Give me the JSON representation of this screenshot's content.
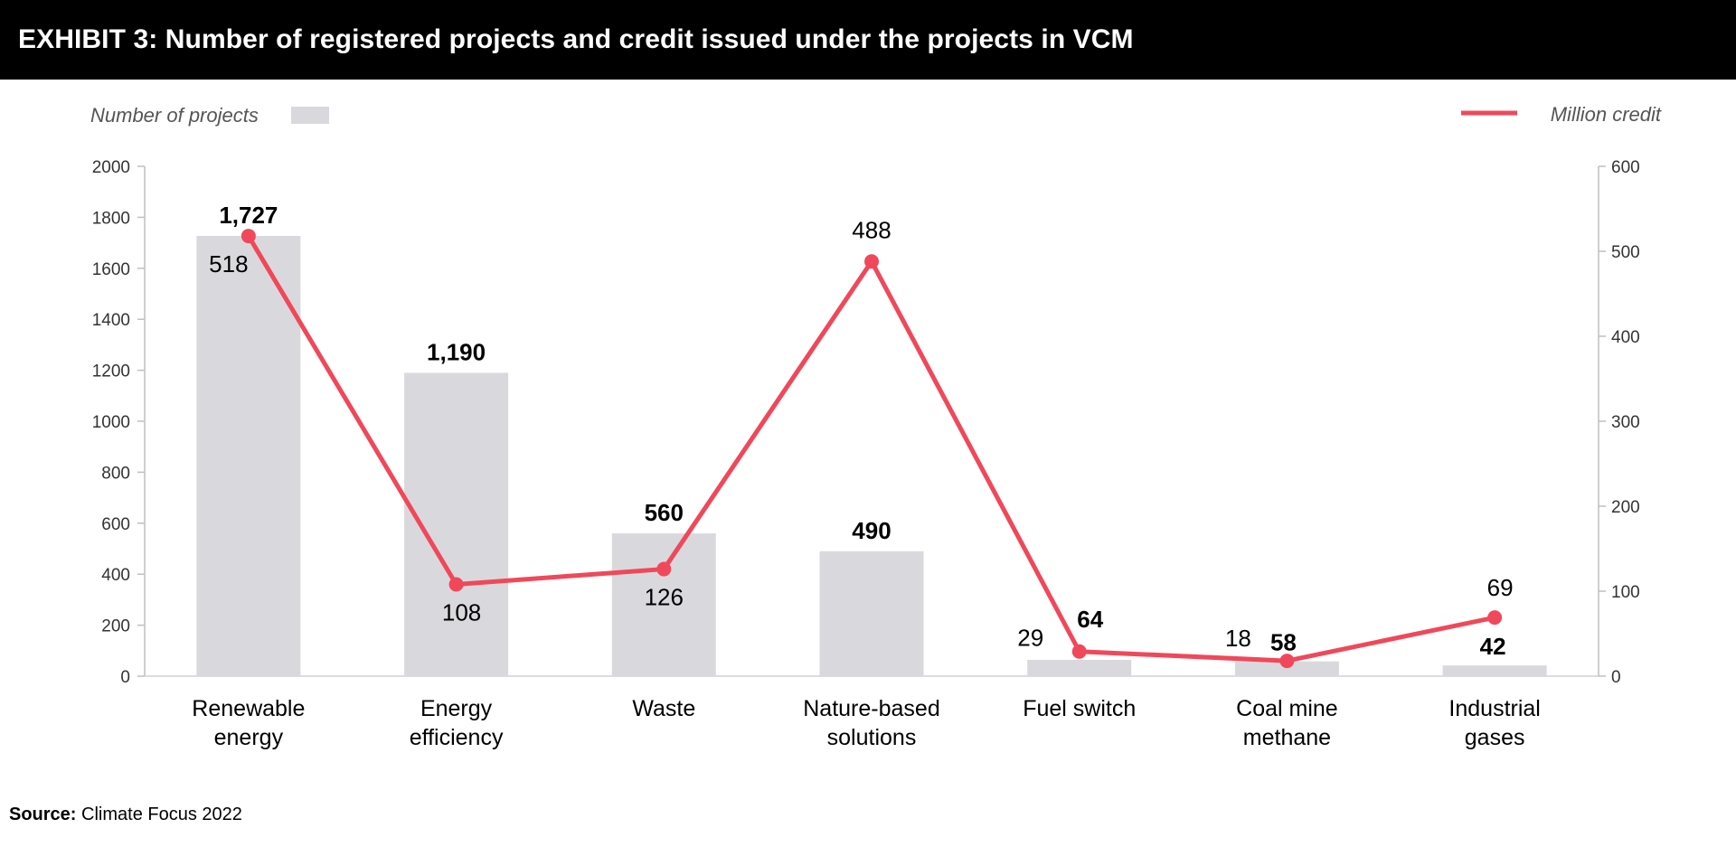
{
  "header": {
    "title": "EXHIBIT 3: Number of registered projects and credit issued under the projects in VCM"
  },
  "footer": {
    "source_label": "Source:",
    "source_text": "Climate Focus 2022"
  },
  "chart_data": {
    "type": "bar",
    "categories": [
      [
        "Renewable",
        "energy"
      ],
      [
        "Energy",
        "efficiency"
      ],
      [
        "Waste"
      ],
      [
        "Nature-based",
        "solutions"
      ],
      [
        "Fuel switch"
      ],
      [
        "Coal mine",
        "methane"
      ],
      [
        "Industrial",
        "gases"
      ]
    ],
    "series": [
      {
        "name": "Number of projects",
        "type": "bar",
        "axis": "left",
        "color": "#d9d9dd",
        "values": [
          1727,
          1190,
          560,
          490,
          64,
          58,
          42
        ],
        "labels": [
          "1,727",
          "1,190",
          "560",
          "490",
          "64",
          "58",
          "42"
        ]
      },
      {
        "name": "Million credit",
        "type": "line",
        "axis": "right",
        "color": "#f0485a",
        "values": [
          518,
          108,
          126,
          488,
          29,
          18,
          69
        ],
        "labels": [
          "518",
          "108",
          "126",
          "488",
          "29",
          "18",
          "69"
        ]
      }
    ],
    "y_left": {
      "min": 0,
      "max": 2000,
      "ticks": [
        0,
        200,
        400,
        600,
        800,
        1000,
        1200,
        1400,
        1600,
        1800,
        2000
      ]
    },
    "y_right": {
      "min": 0,
      "max": 600,
      "ticks": [
        0,
        100,
        200,
        300,
        400,
        500,
        600
      ]
    },
    "legend": {
      "left_label": "Number of projects",
      "right_label": "Million credit"
    },
    "grid": false
  }
}
